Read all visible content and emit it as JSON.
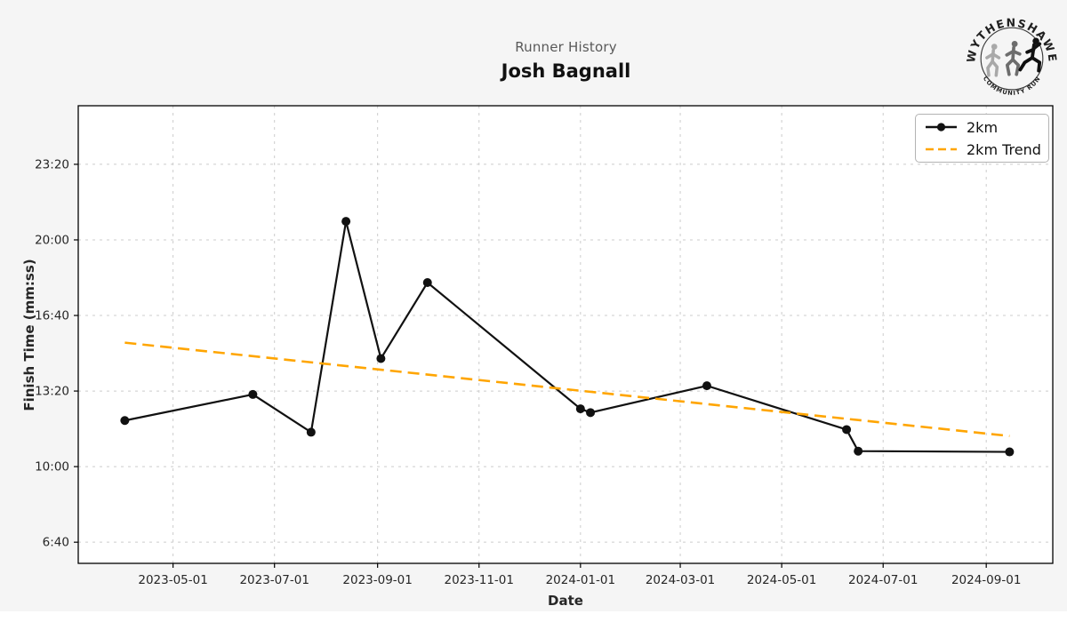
{
  "header": {
    "title": "Runner History",
    "name": "Josh Bagnall"
  },
  "logo": {
    "arc_top": "WYTHENSHAWE",
    "arc_bottom": "COMMUNITY RUN"
  },
  "axes": {
    "x_label": "Date",
    "y_label": "Finish Time (mm:ss)"
  },
  "legend": {
    "items": [
      {
        "label": "2km"
      },
      {
        "label": "2km Trend"
      }
    ]
  },
  "colors": {
    "figure_bg": "#f5f5f5",
    "plot_bg": "#ffffff",
    "grid": "#cccccc",
    "spine": "#000000",
    "series": "#111111",
    "trend": "#ffa500",
    "title": "#595959",
    "text": "#262626"
  },
  "chart_data": {
    "type": "line",
    "title": "Runner History",
    "subtitle": "Josh Bagnall",
    "xlabel": "Date",
    "ylabel": "Finish Time (mm:ss)",
    "grid": true,
    "legend_position": "upper right",
    "x_ticks": [
      "2023-05-01",
      "2023-07-01",
      "2023-09-01",
      "2023-11-01",
      "2024-01-01",
      "2024-03-01",
      "2024-05-01",
      "2024-07-01",
      "2024-09-01"
    ],
    "y_ticks": [
      {
        "seconds": 400,
        "label": "6:40"
      },
      {
        "seconds": 600,
        "label": "10:00"
      },
      {
        "seconds": 800,
        "label": "13:20"
      },
      {
        "seconds": 1000,
        "label": "16:40"
      },
      {
        "seconds": 1200,
        "label": "20:00"
      },
      {
        "seconds": 1400,
        "label": "23:20"
      }
    ],
    "xlim": [
      "2023-03-05",
      "2024-10-11"
    ],
    "ylim_seconds": [
      344,
      1555
    ],
    "series": [
      {
        "name": "2km",
        "style": "solid_markers",
        "color": "#111111",
        "points": [
          {
            "date": "2023-04-02",
            "time": "12:02",
            "seconds": 722
          },
          {
            "date": "2023-06-18",
            "time": "13:11",
            "seconds": 791
          },
          {
            "date": "2023-07-23",
            "time": "11:31",
            "seconds": 691
          },
          {
            "date": "2023-08-13",
            "time": "20:49",
            "seconds": 1249
          },
          {
            "date": "2023-09-03",
            "time": "14:46",
            "seconds": 886
          },
          {
            "date": "2023-10-01",
            "time": "18:07",
            "seconds": 1087
          },
          {
            "date": "2024-01-01",
            "time": "12:33",
            "seconds": 753
          },
          {
            "date": "2024-01-07",
            "time": "12:23",
            "seconds": 743
          },
          {
            "date": "2024-03-17",
            "time": "13:34",
            "seconds": 814
          },
          {
            "date": "2024-06-09",
            "time": "11:38",
            "seconds": 698
          },
          {
            "date": "2024-06-16",
            "time": "10:41",
            "seconds": 641
          },
          {
            "date": "2024-09-15",
            "time": "10:39",
            "seconds": 639
          }
        ]
      },
      {
        "name": "2km Trend",
        "style": "dashed",
        "color": "#ffa500",
        "points": [
          {
            "date": "2023-04-02",
            "time": "15:28",
            "seconds": 928
          },
          {
            "date": "2024-09-15",
            "time": "11:21",
            "seconds": 681
          }
        ]
      }
    ]
  }
}
